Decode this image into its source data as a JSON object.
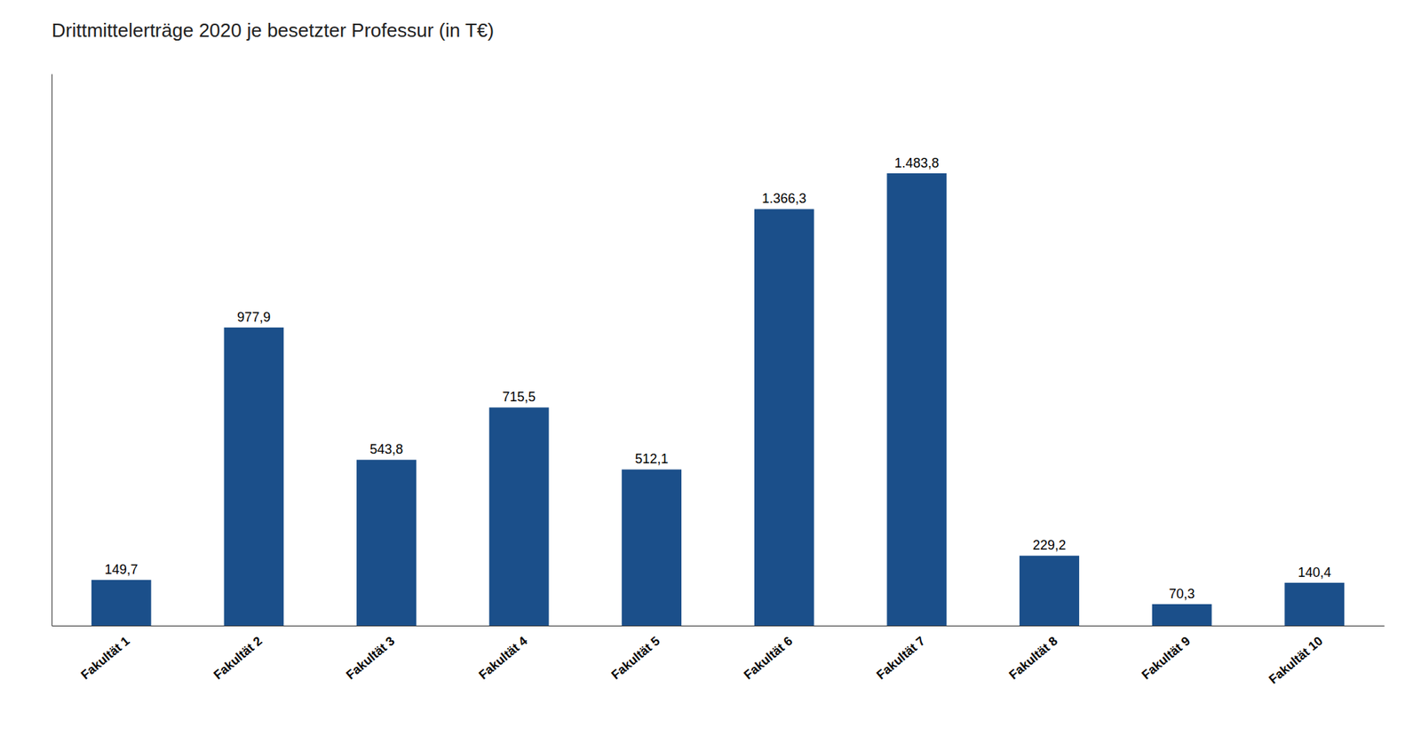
{
  "chart_data": {
    "type": "bar",
    "title": "Drittmittelerträge 2020 je besetzter Professur (in T€)",
    "categories": [
      "Fakultät 1",
      "Fakultät 2",
      "Fakultät 3",
      "Fakultät 4",
      "Fakultät 5",
      "Fakultät 6",
      "Fakultät 7",
      "Fakultät 8",
      "Fakultät 9",
      "Fakultät 10"
    ],
    "values": [
      149.7,
      977.9,
      543.8,
      715.5,
      512.1,
      1366.3,
      1483.8,
      229.2,
      70.3,
      140.4
    ],
    "value_labels": [
      "149,7",
      "977,9",
      "543,8",
      "715,5",
      "512,1",
      "1.366,3",
      "1.483,8",
      "229,2",
      "70,3",
      "140,4"
    ],
    "color": "#1B4F8A",
    "ylim": [
      0,
      1810.236
    ],
    "grid": false,
    "data_labels": true,
    "tick_labels": "x"
  }
}
